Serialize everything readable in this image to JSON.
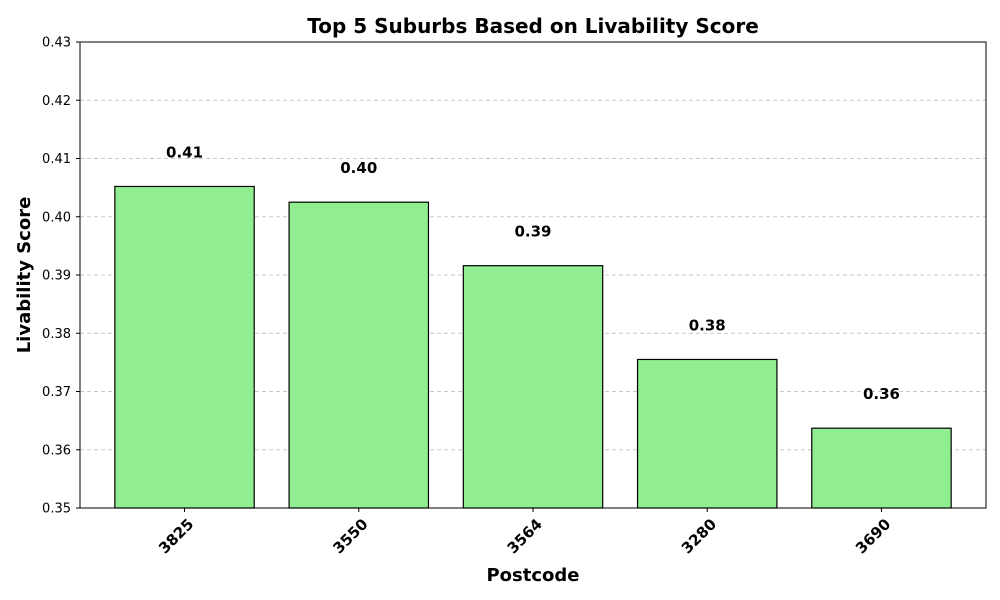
{
  "chart_data": {
    "type": "bar",
    "title": "Top 5 Suburbs Based on Livability Score",
    "xlabel": "Postcode",
    "ylabel": "Livability Score",
    "categories": [
      "3825",
      "3550",
      "3564",
      "3280",
      "3690"
    ],
    "values": [
      0.4052,
      0.4025,
      0.3916,
      0.3755,
      0.3637
    ],
    "data_labels": [
      "0.41",
      "0.40",
      "0.39",
      "0.38",
      "0.36"
    ],
    "ylim": [
      0.35,
      0.43
    ],
    "y_ticks": [
      0.35,
      0.36,
      0.37,
      0.38,
      0.39,
      0.4,
      0.41,
      0.42,
      0.43
    ],
    "y_tick_labels": [
      "0.35",
      "0.36",
      "0.37",
      "0.38",
      "0.39",
      "0.40",
      "0.41",
      "0.42",
      "0.43"
    ],
    "grid": "y-dashed",
    "x_tick_rotation": 45,
    "colors": {
      "bar_fill": "#90EE90",
      "bar_edge": "#000000",
      "grid": "#c8c8c8"
    }
  }
}
